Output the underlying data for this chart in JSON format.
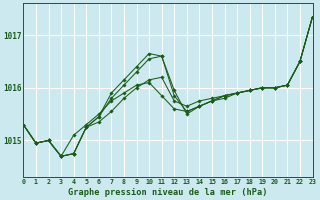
{
  "title": "Graphe pression niveau de la mer (hPa)",
  "bg_color": "#cce9f0",
  "grid_color": "#ffffff",
  "line_color": "#1a5c1a",
  "x_min": 0,
  "x_max": 23,
  "y_min": 1014.3,
  "y_max": 1017.6,
  "yticks": [
    1015,
    1016,
    1017
  ],
  "xticks": [
    0,
    1,
    2,
    3,
    4,
    5,
    6,
    7,
    8,
    9,
    10,
    11,
    12,
    13,
    14,
    15,
    16,
    17,
    18,
    19,
    20,
    21,
    22,
    23
  ],
  "series": [
    [
      1015.3,
      1014.95,
      1015.0,
      1014.7,
      1014.75,
      1015.25,
      1015.35,
      1015.55,
      1015.8,
      1016.0,
      1016.15,
      1016.2,
      1015.75,
      1015.65,
      1015.75,
      1015.8,
      1015.85,
      1015.9,
      1015.95,
      1016.0,
      1016.0,
      1016.05,
      1016.5,
      1017.35
    ],
    [
      1015.3,
      1014.95,
      1015.0,
      1014.7,
      1014.75,
      1015.25,
      1015.45,
      1015.8,
      1016.05,
      1016.3,
      1016.55,
      1016.6,
      1015.85,
      1015.55,
      1015.65,
      1015.75,
      1015.85,
      1015.9,
      1015.95,
      1016.0,
      1016.0,
      1016.05,
      1016.5,
      1017.35
    ],
    [
      1015.3,
      1014.95,
      1015.0,
      1014.7,
      1014.75,
      1015.25,
      1015.45,
      1015.9,
      1016.15,
      1016.4,
      1016.65,
      1016.6,
      1015.95,
      1015.5,
      1015.65,
      1015.75,
      1015.85,
      1015.9,
      1015.95,
      1016.0,
      1016.0,
      1016.05,
      1016.5,
      1017.35
    ],
    [
      1015.3,
      1014.95,
      1015.0,
      1014.7,
      1015.1,
      1015.3,
      1015.5,
      1015.75,
      1015.9,
      1016.05,
      1016.1,
      1015.85,
      1015.6,
      1015.55,
      1015.65,
      1015.75,
      1015.8,
      1015.9,
      1015.95,
      1016.0,
      1016.0,
      1016.05,
      1016.5,
      1017.35
    ]
  ]
}
